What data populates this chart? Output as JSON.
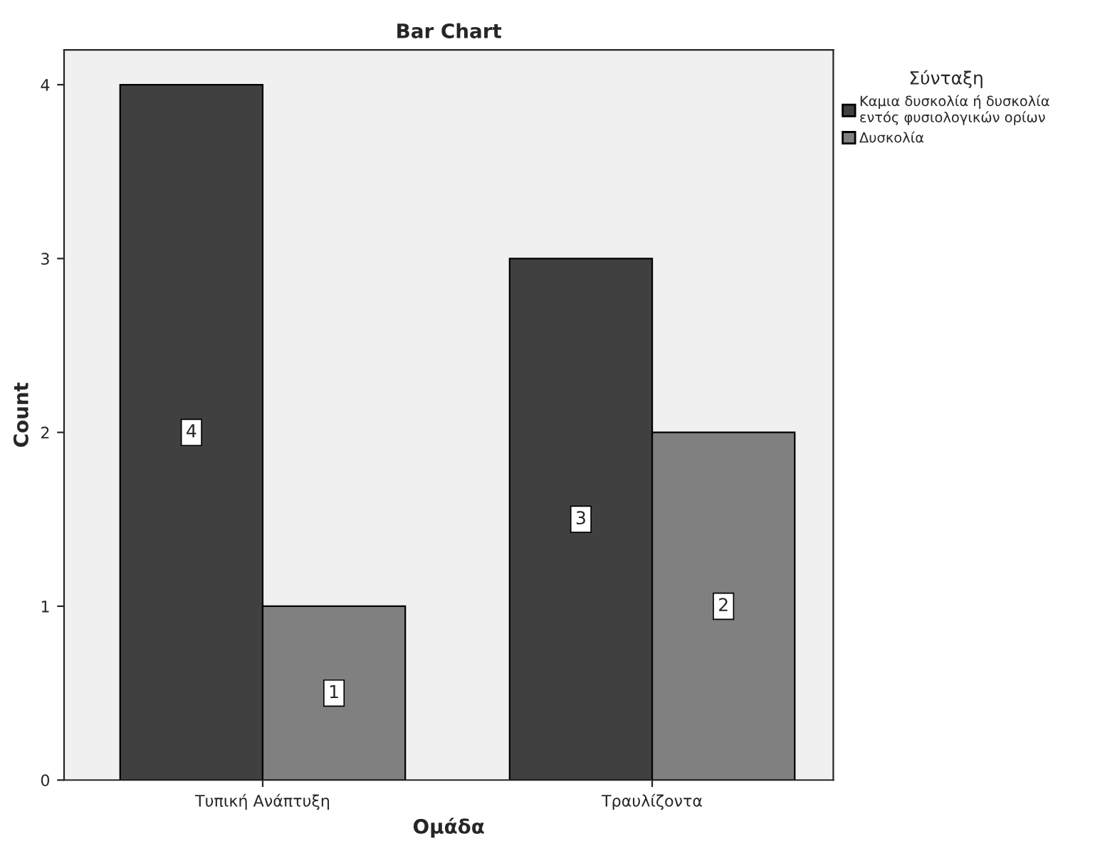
{
  "chart_data": {
    "type": "bar",
    "title": "Bar Chart",
    "xlabel": "Ομάδα",
    "ylabel": "Count",
    "legend_title": "Σύνταξη",
    "categories": [
      "Τυπική Ανάπτυξη",
      "Τραυλίζοντα"
    ],
    "series": [
      {
        "name": "Καμια δυσκολία ή δυσκολία\nεντός φυσιολογικών ορίων",
        "color": "#404040",
        "values": [
          4,
          3
        ]
      },
      {
        "name": "Δυσκολία",
        "color": "#808080",
        "values": [
          1,
          2
        ]
      }
    ],
    "ylim": [
      0,
      4.2
    ],
    "yticks": [
      0,
      1,
      2,
      3,
      4
    ],
    "grid": false,
    "legend": "top right",
    "data_labels": true
  }
}
